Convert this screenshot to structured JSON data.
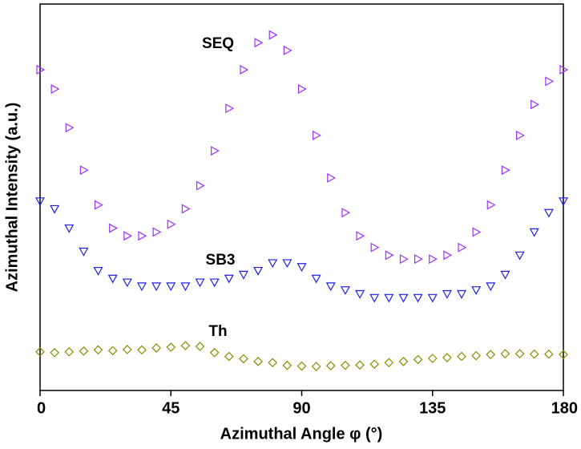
{
  "chart_data": {
    "type": "scatter",
    "x_label": "Azimuthal Angle φ (°)",
    "y_label": "Azimuthal Intensity (a.u.)",
    "xlim": [
      0,
      180
    ],
    "xticks": [
      0,
      45,
      90,
      135,
      180
    ],
    "ylim": [
      0,
      100
    ],
    "annotations": [
      "SEQ",
      "SB3",
      "Th"
    ],
    "x": [
      0,
      5,
      10,
      15,
      20,
      25,
      30,
      35,
      40,
      45,
      50,
      55,
      60,
      65,
      70,
      75,
      80,
      85,
      90,
      95,
      100,
      105,
      110,
      115,
      120,
      125,
      130,
      135,
      140,
      145,
      150,
      155,
      160,
      165,
      170,
      175,
      180
    ],
    "series": [
      {
        "name": "SEQ",
        "color": "#9b30ff",
        "marker": "triangle-right",
        "values": [
          83,
          78,
          68,
          57,
          48,
          42,
          40,
          40,
          41,
          43,
          47,
          53,
          62,
          73,
          83,
          90,
          92,
          88,
          78,
          66,
          55,
          46,
          40,
          37,
          35,
          34,
          34,
          34,
          35,
          37,
          41,
          48,
          57,
          66,
          74,
          80,
          83
        ]
      },
      {
        "name": "SB3",
        "color": "#1f1fe6",
        "marker": "triangle-down",
        "values": [
          49,
          47,
          42,
          36,
          31,
          29,
          28,
          27,
          27,
          27,
          27,
          28,
          28,
          29,
          30,
          31,
          33,
          33,
          32,
          29,
          27,
          26,
          25,
          24,
          24,
          24,
          24,
          24,
          25,
          25,
          26,
          27,
          30,
          35,
          41,
          46,
          49
        ]
      },
      {
        "name": "Th",
        "color": "#8b8b00",
        "marker": "diamond",
        "values": [
          10,
          9.8,
          10,
          10.2,
          10.5,
          10.3,
          10.6,
          10.5,
          11,
          11.2,
          11.6,
          11.4,
          9.8,
          8.8,
          8.2,
          7.5,
          7.2,
          6.5,
          6.3,
          6.2,
          6.4,
          6.5,
          6.6,
          6.8,
          7.2,
          7.5,
          8,
          8.3,
          8.5,
          8.8,
          9,
          9.3,
          9.5,
          9.5,
          9.4,
          9.4,
          9.3
        ]
      }
    ]
  }
}
